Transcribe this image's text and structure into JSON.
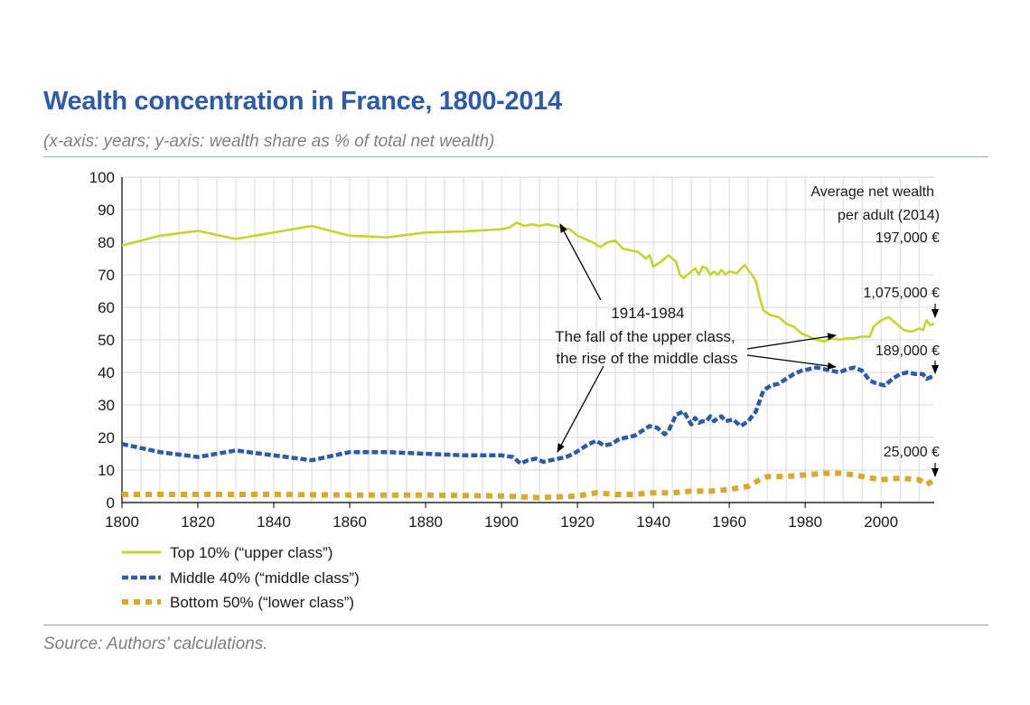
{
  "header": {
    "title": "Wealth concentration in France, 1800-2014",
    "subtitle": "(x-axis: years; y-axis: wealth share as % of total net wealth)"
  },
  "footer": {
    "source": "Source: Authors’ calculations."
  },
  "colors": {
    "top": "#c3d62d",
    "middle": "#2f5aa8",
    "bottom": "#d9a830",
    "grid": "#d9d9d9",
    "rule": "#95a9c9"
  },
  "chart_data": {
    "type": "line",
    "title": "Wealth concentration in France, 1800-2014",
    "xlabel": "years",
    "ylabel": "wealth share as % of total net wealth",
    "xlim": [
      1800,
      2014
    ],
    "ylim": [
      0,
      100
    ],
    "x_ticks": [
      1800,
      1820,
      1840,
      1860,
      1880,
      1900,
      1920,
      1940,
      1960,
      1980,
      2000
    ],
    "y_ticks": [
      0,
      10,
      20,
      30,
      40,
      50,
      60,
      70,
      80,
      90,
      100
    ],
    "grid": true,
    "series": [
      {
        "name": "Top 10% (“upper class”)",
        "style": "solid",
        "points": [
          [
            1800,
            79
          ],
          [
            1810,
            82
          ],
          [
            1820,
            83.5
          ],
          [
            1830,
            81
          ],
          [
            1840,
            83
          ],
          [
            1850,
            85
          ],
          [
            1860,
            82
          ],
          [
            1870,
            81.5
          ],
          [
            1880,
            83
          ],
          [
            1890,
            83.3
          ],
          [
            1900,
            84
          ],
          [
            1902,
            84.5
          ],
          [
            1904,
            86
          ],
          [
            1906,
            85
          ],
          [
            1908,
            85.5
          ],
          [
            1910,
            85
          ],
          [
            1912,
            85.5
          ],
          [
            1914,
            85
          ],
          [
            1916,
            84.5
          ],
          [
            1918,
            84
          ],
          [
            1920,
            82
          ],
          [
            1922,
            81
          ],
          [
            1924,
            80
          ],
          [
            1926,
            78.5
          ],
          [
            1928,
            80
          ],
          [
            1930,
            80.5
          ],
          [
            1932,
            78
          ],
          [
            1934,
            77.5
          ],
          [
            1936,
            77
          ],
          [
            1938,
            75
          ],
          [
            1939,
            76
          ],
          [
            1940,
            72.5
          ],
          [
            1942,
            74
          ],
          [
            1944,
            76
          ],
          [
            1946,
            74
          ],
          [
            1947,
            70
          ],
          [
            1948,
            69
          ],
          [
            1950,
            71
          ],
          [
            1951,
            72
          ],
          [
            1952,
            70
          ],
          [
            1953,
            72.5
          ],
          [
            1954,
            72
          ],
          [
            1955,
            70
          ],
          [
            1956,
            71
          ],
          [
            1957,
            70
          ],
          [
            1958,
            71.5
          ],
          [
            1959,
            70
          ],
          [
            1960,
            71
          ],
          [
            1962,
            70.5
          ],
          [
            1964,
            73
          ],
          [
            1966,
            70
          ],
          [
            1967,
            68
          ],
          [
            1968,
            63
          ],
          [
            1969,
            59
          ],
          [
            1971,
            57.5
          ],
          [
            1973,
            57
          ],
          [
            1975,
            55
          ],
          [
            1977,
            54
          ],
          [
            1979,
            52
          ],
          [
            1981,
            51
          ],
          [
            1983,
            50
          ],
          [
            1985,
            49.5
          ],
          [
            1987,
            50.5
          ],
          [
            1989,
            50
          ],
          [
            1991,
            50.5
          ],
          [
            1993,
            50.5
          ],
          [
            1995,
            51
          ],
          [
            1997,
            51
          ],
          [
            1998,
            54
          ],
          [
            2000,
            56
          ],
          [
            2002,
            57
          ],
          [
            2004,
            55
          ],
          [
            2006,
            53
          ],
          [
            2008,
            52.5
          ],
          [
            2010,
            53.5
          ],
          [
            2011,
            53
          ],
          [
            2012,
            56
          ],
          [
            2013,
            54.5
          ],
          [
            2014,
            55
          ]
        ]
      },
      {
        "name": "Middle 40% (“middle class”)",
        "style": "dashed",
        "points": [
          [
            1800,
            18
          ],
          [
            1810,
            15.5
          ],
          [
            1820,
            14
          ],
          [
            1830,
            16
          ],
          [
            1840,
            14.5
          ],
          [
            1850,
            13
          ],
          [
            1860,
            15.5
          ],
          [
            1870,
            15.5
          ],
          [
            1880,
            15
          ],
          [
            1890,
            14.5
          ],
          [
            1900,
            14.5
          ],
          [
            1903,
            14
          ],
          [
            1905,
            12
          ],
          [
            1907,
            13
          ],
          [
            1909,
            13.5
          ],
          [
            1911,
            12.5
          ],
          [
            1913,
            13
          ],
          [
            1915,
            13.5
          ],
          [
            1917,
            14
          ],
          [
            1919,
            15
          ],
          [
            1921,
            16.5
          ],
          [
            1923,
            18
          ],
          [
            1925,
            19
          ],
          [
            1927,
            17.5
          ],
          [
            1929,
            18
          ],
          [
            1931,
            19.5
          ],
          [
            1933,
            20
          ],
          [
            1935,
            20.5
          ],
          [
            1937,
            22
          ],
          [
            1939,
            23.5
          ],
          [
            1941,
            23
          ],
          [
            1943,
            21
          ],
          [
            1944,
            22
          ],
          [
            1946,
            27
          ],
          [
            1948,
            28
          ],
          [
            1949,
            26
          ],
          [
            1950,
            24
          ],
          [
            1951,
            26
          ],
          [
            1952,
            24.5
          ],
          [
            1953,
            25
          ],
          [
            1954,
            25
          ],
          [
            1955,
            26.5
          ],
          [
            1956,
            25
          ],
          [
            1957,
            26
          ],
          [
            1958,
            26.5
          ],
          [
            1959,
            25
          ],
          [
            1961,
            25.5
          ],
          [
            1963,
            23.5
          ],
          [
            1965,
            25
          ],
          [
            1967,
            28
          ],
          [
            1969,
            34.5
          ],
          [
            1971,
            36
          ],
          [
            1973,
            36.5
          ],
          [
            1975,
            38
          ],
          [
            1977,
            39.5
          ],
          [
            1979,
            40.5
          ],
          [
            1981,
            41
          ],
          [
            1983,
            41.5
          ],
          [
            1985,
            41
          ],
          [
            1987,
            40.5
          ],
          [
            1989,
            40
          ],
          [
            1991,
            41
          ],
          [
            1993,
            41.5
          ],
          [
            1995,
            40.5
          ],
          [
            1997,
            37.5
          ],
          [
            1999,
            36.5
          ],
          [
            2001,
            36
          ],
          [
            2003,
            38
          ],
          [
            2005,
            39.5
          ],
          [
            2007,
            40
          ],
          [
            2009,
            39.5
          ],
          [
            2011,
            39.5
          ],
          [
            2012,
            38
          ],
          [
            2014,
            39
          ]
        ]
      },
      {
        "name": "Bottom 50% (“lower class”)",
        "style": "dotted",
        "points": [
          [
            1800,
            2.5
          ],
          [
            1820,
            2.5
          ],
          [
            1840,
            2.5
          ],
          [
            1860,
            2.3
          ],
          [
            1880,
            2.3
          ],
          [
            1900,
            2
          ],
          [
            1910,
            1.5
          ],
          [
            1920,
            2
          ],
          [
            1925,
            3
          ],
          [
            1930,
            2.5
          ],
          [
            1935,
            2.5
          ],
          [
            1940,
            3
          ],
          [
            1945,
            3
          ],
          [
            1950,
            3.5
          ],
          [
            1955,
            3.5
          ],
          [
            1960,
            4
          ],
          [
            1965,
            5
          ],
          [
            1968,
            7
          ],
          [
            1970,
            8
          ],
          [
            1975,
            8
          ],
          [
            1980,
            8.5
          ],
          [
            1985,
            9
          ],
          [
            1990,
            9
          ],
          [
            1995,
            8
          ],
          [
            2000,
            7
          ],
          [
            2005,
            7.5
          ],
          [
            2010,
            7
          ],
          [
            2012,
            5.5
          ],
          [
            2014,
            7
          ]
        ]
      }
    ],
    "annotations": {
      "period_label": "1914-1984",
      "fall_text": "The fall of the upper class,",
      "rise_text": "the rise of the middle class",
      "avg_line1": "Average net wealth",
      "avg_line2": "per adult (2014)",
      "top_value": "197,000 €",
      "upper_value": "1,075,000 €",
      "middle_value": "189,000 €",
      "bottom_value": "25,000 €"
    }
  }
}
